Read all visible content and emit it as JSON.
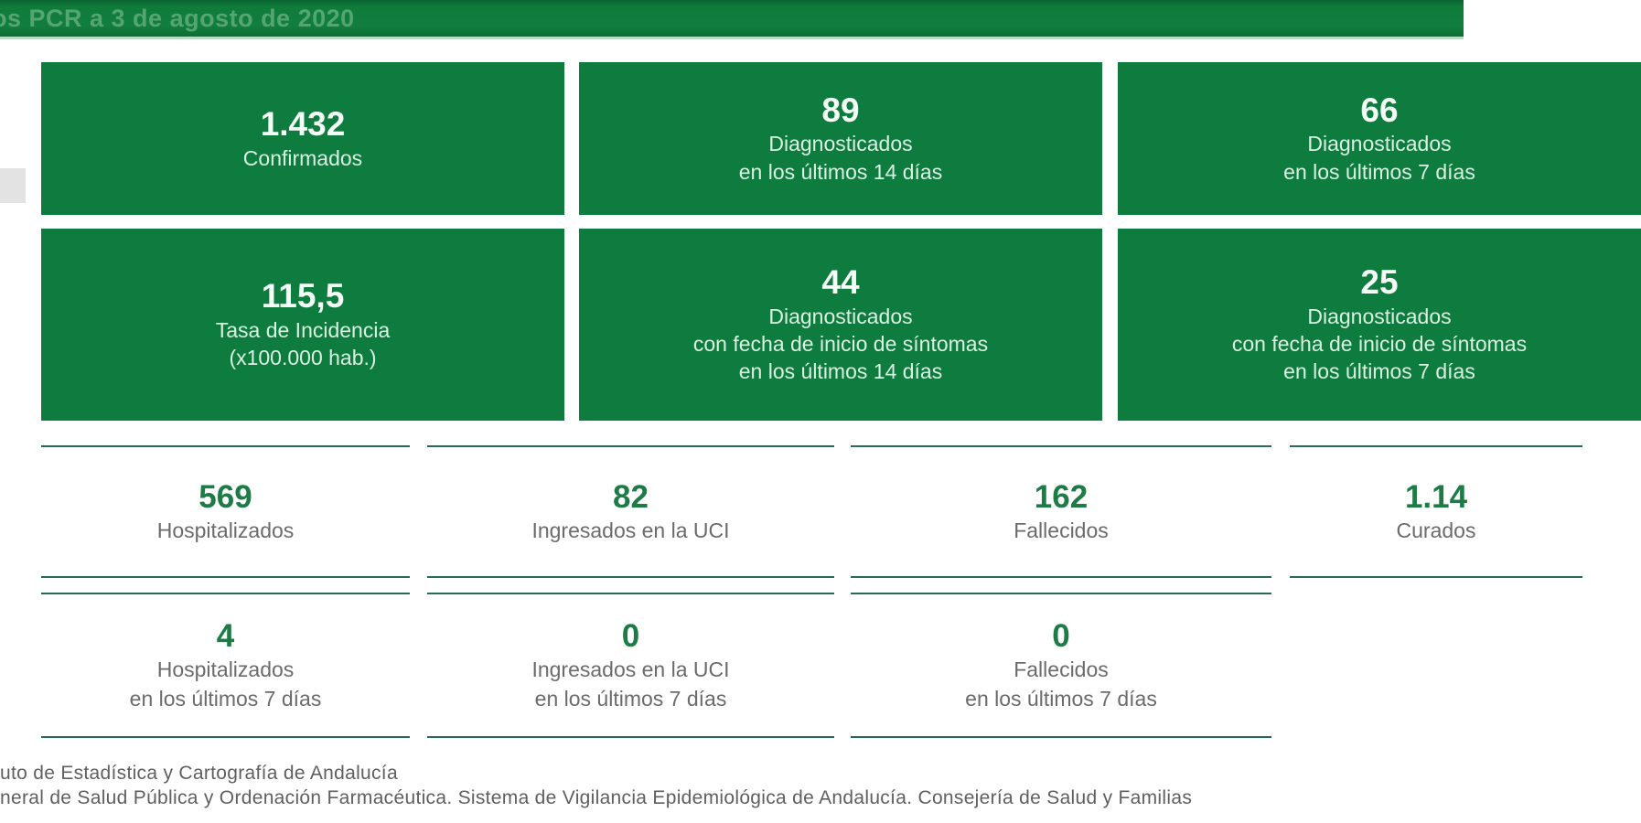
{
  "header": {
    "title": "os PCR a 3 de agosto de 2020"
  },
  "colors": {
    "card_green": "#0e7c3e",
    "header_green": "#117e3e",
    "title_text_green": "#55a571",
    "stat_number_green": "#1d7c45",
    "divider_green": "#256b4f",
    "stat_label_gray": "#6b6b6b",
    "footer_gray": "#5f5f5f"
  },
  "cards": [
    {
      "value": "1.432",
      "lines": [
        "Confirmados"
      ]
    },
    {
      "value": "89",
      "lines": [
        "Diagnosticados",
        "en los últimos 14 días"
      ]
    },
    {
      "value": "66",
      "lines": [
        "Diagnosticados",
        "en los últimos 7 días"
      ]
    },
    {
      "value": "115,5",
      "lines": [
        "Tasa de Incidencia",
        "(x100.000 hab.)"
      ]
    },
    {
      "value": "44",
      "lines": [
        "Diagnosticados",
        "con fecha de inicio de síntomas",
        "en los últimos 14 días"
      ]
    },
    {
      "value": "25",
      "lines": [
        "Diagnosticados",
        "con fecha de inicio de síntomas",
        "en los últimos 7 días"
      ]
    }
  ],
  "stats_row1": [
    {
      "value": "569",
      "lines": [
        "Hospitalizados"
      ]
    },
    {
      "value": "82",
      "lines": [
        "Ingresados en la UCI"
      ]
    },
    {
      "value": "162",
      "lines": [
        "Fallecidos"
      ]
    },
    {
      "value": "1.14",
      "lines": [
        "Curados"
      ]
    }
  ],
  "stats_row2": [
    {
      "value": "4",
      "lines": [
        "Hospitalizados",
        "en los últimos 7 días"
      ]
    },
    {
      "value": "0",
      "lines": [
        "Ingresados en la UCI",
        "en los últimos 7 días"
      ]
    },
    {
      "value": "0",
      "lines": [
        "Fallecidos",
        "en los últimos 7 días"
      ]
    }
  ],
  "footer": {
    "line1": "uto de Estadística y Cartografía de Andalucía",
    "line2": "neral de Salud Pública y Ordenación Farmacéutica. Sistema de Vigilancia Epidemiológica de Andalucía. Consejería de Salud y Familias"
  }
}
